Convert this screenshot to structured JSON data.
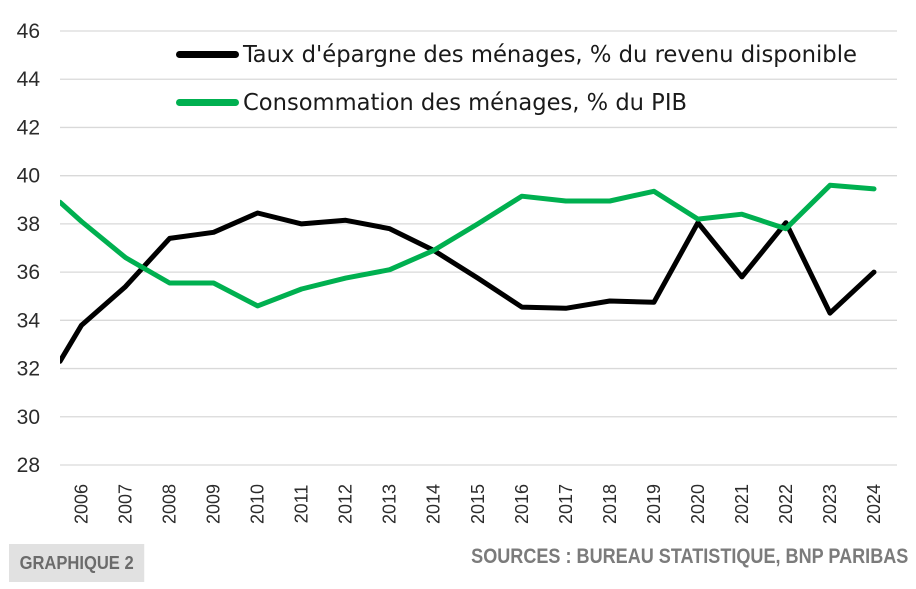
{
  "chart_data": {
    "type": "line",
    "title": "",
    "xlabel": "",
    "ylabel": "",
    "ylim": [
      28,
      46
    ],
    "yticks": [
      28,
      30,
      32,
      34,
      36,
      38,
      40,
      42,
      44,
      46
    ],
    "grid": true,
    "legend_position": "top-center",
    "categories": [
      "2006",
      "2007",
      "2008",
      "2009",
      "2010",
      "2011",
      "2012",
      "2013",
      "2014",
      "2015",
      "2016",
      "2017",
      "2018",
      "2019",
      "2020",
      "2021",
      "2022",
      "2023",
      "2024"
    ],
    "series": [
      {
        "name": "Taux d'épargne des ménages, % du revenu disponible",
        "color": "#000000",
        "values_at_left_edge": 32.3,
        "values": [
          33.8,
          35.4,
          37.4,
          37.65,
          38.45,
          38.0,
          38.15,
          37.8,
          36.9,
          35.75,
          34.55,
          34.5,
          34.8,
          34.75,
          38.05,
          35.8,
          38.05,
          34.3,
          36.0
        ]
      },
      {
        "name": "Consommation des ménages, % du PIB",
        "color": "#00b050",
        "values_at_left_edge": 38.9,
        "values": [
          38.1,
          36.6,
          35.55,
          35.55,
          34.6,
          35.3,
          35.75,
          36.1,
          36.9,
          38.0,
          39.15,
          38.95,
          38.95,
          39.35,
          38.2,
          38.4,
          37.8,
          39.6,
          39.45
        ]
      }
    ]
  },
  "footer": {
    "badge": "GRAPHIQUE 2",
    "sources": "SOURCES : BUREAU STATISTIQUE, BNP PARIBAS"
  }
}
